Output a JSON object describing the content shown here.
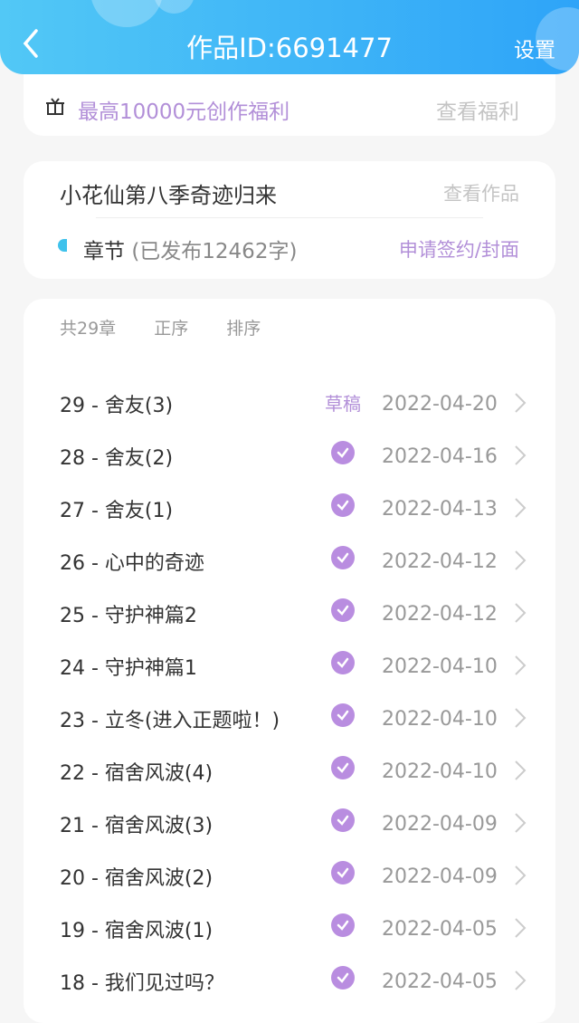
{
  "header": {
    "title": "作品ID:6691477",
    "settings": "设置"
  },
  "promo": {
    "text": "最高10000元创作福利",
    "link": "查看福利"
  },
  "work": {
    "title": "小花仙第八季奇迹归来",
    "view_link": "查看作品",
    "chapters_label": "章节",
    "published": "(已发布12462字)",
    "sign_link": "申请签约/封面"
  },
  "list": {
    "count": "共29章",
    "order": "正序",
    "sort": "排序",
    "chapters": [
      {
        "title": "29 - 舍友(3)",
        "status": "草稿",
        "date": "2022-04-20"
      },
      {
        "title": "28 - 舍友(2)",
        "status": "published",
        "date": "2022-04-16"
      },
      {
        "title": "27 - 舍友(1)",
        "status": "published",
        "date": "2022-04-13"
      },
      {
        "title": "26 - 心中的奇迹",
        "status": "published",
        "date": "2022-04-12"
      },
      {
        "title": "25 - 守护神篇2",
        "status": "published",
        "date": "2022-04-12"
      },
      {
        "title": "24 - 守护神篇1",
        "status": "published",
        "date": "2022-04-10"
      },
      {
        "title": "23 - 立冬(进入正题啦！)",
        "status": "published",
        "date": "2022-04-10"
      },
      {
        "title": "22 - 宿舍风波(4)",
        "status": "published",
        "date": "2022-04-10"
      },
      {
        "title": "21 - 宿舍风波(3)",
        "status": "published",
        "date": "2022-04-09"
      },
      {
        "title": "20 - 宿舍风波(2)",
        "status": "published",
        "date": "2022-04-09"
      },
      {
        "title": "19 - 宿舍风波(1)",
        "status": "published",
        "date": "2022-04-05"
      },
      {
        "title": "18 - 我们见过吗？",
        "status": "published",
        "date": "2022-04-05"
      }
    ]
  },
  "colors": {
    "accent": "#b28fd8",
    "header_start": "#52c8f6",
    "header_end": "#2ea4f8",
    "marker": "#3fc2ec"
  }
}
